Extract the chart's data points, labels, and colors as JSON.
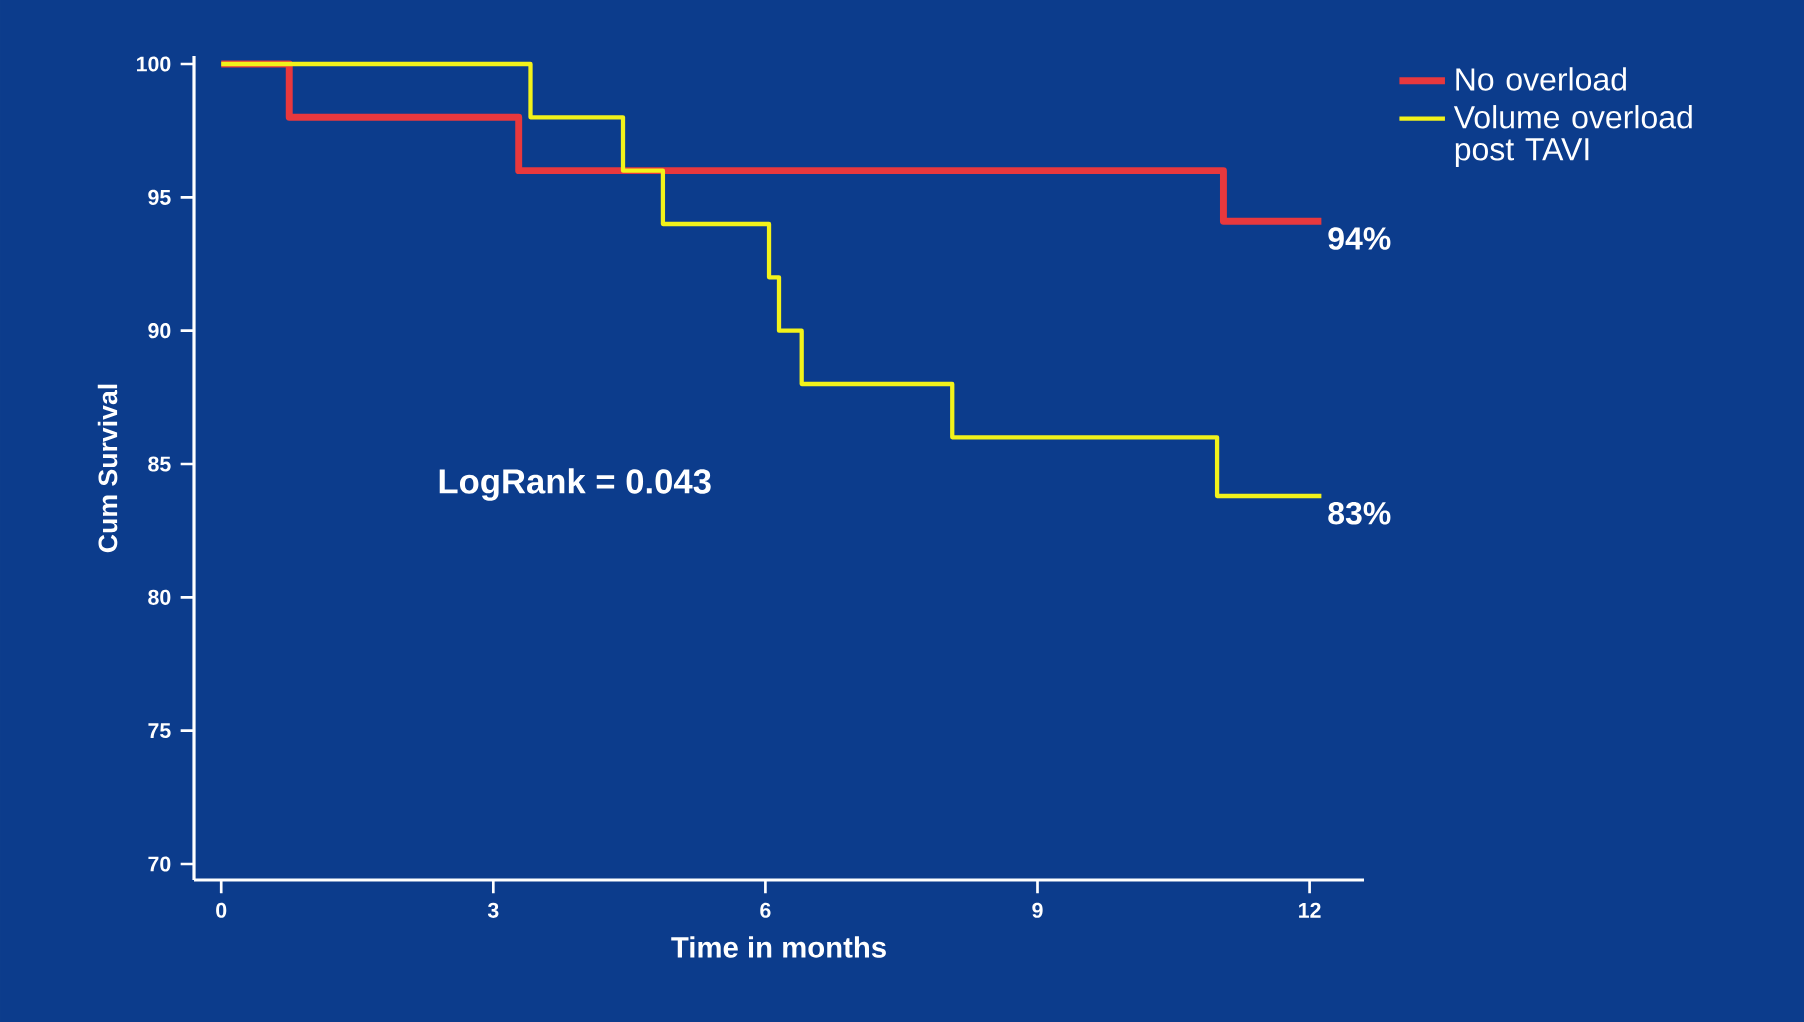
{
  "chart_data": {
    "type": "step",
    "xlabel": "Time in months",
    "ylabel": "Cum Survival",
    "series": [
      {
        "name": "No overload",
        "color": "#e8383d",
        "x": [
          0,
          0.75,
          3.28,
          11.05,
          12.13
        ],
        "values": [
          100,
          98,
          96,
          94.1,
          94.1
        ]
      },
      {
        "name": "Volume overload post TAVI",
        "color": "#f2f21a",
        "x": [
          0,
          3.41,
          4.43,
          4.87,
          6.04,
          6.15,
          6.4,
          8.06,
          10.98,
          12.13
        ],
        "values": [
          100,
          98,
          96,
          94,
          92,
          90,
          88,
          86,
          83.8,
          83.8
        ]
      }
    ],
    "annotations": [
      {
        "text": "94%",
        "x": 12.13,
        "y": 94.1
      },
      {
        "text": "83%",
        "x": 12.13,
        "y": 83.8
      },
      "LogRank = 0.043"
    ],
    "xlim": [
      -0.3,
      12.6
    ],
    "ylim": [
      69.4,
      100.3
    ],
    "xticks": [
      0,
      3,
      6,
      9,
      12
    ],
    "yticks": [
      70,
      75,
      80,
      85,
      90,
      95,
      100
    ],
    "legend": "top right",
    "grid": false,
    "marker": "none",
    "line_style": "solid"
  }
}
